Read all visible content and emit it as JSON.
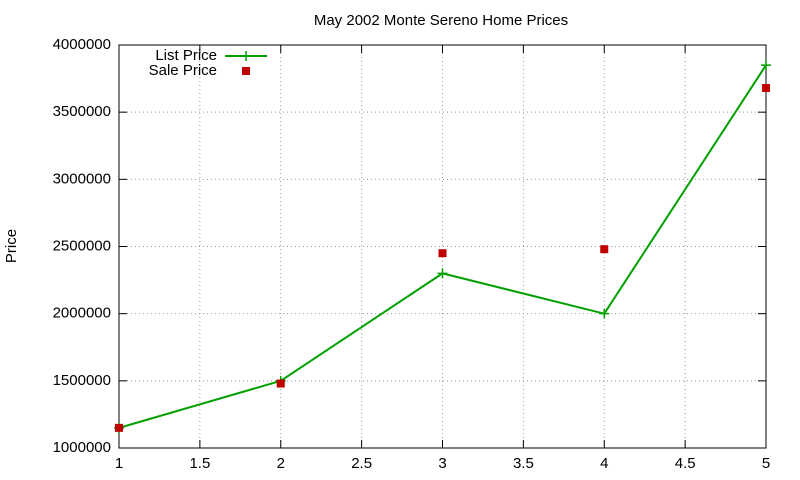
{
  "chart_data": {
    "type": "line",
    "title": "May 2002 Monte Sereno Home Prices",
    "y_label": "Price",
    "x": [
      1,
      2,
      3,
      4,
      5
    ],
    "series": [
      {
        "name": "List Price",
        "type": "line",
        "color": "#00a000",
        "values": [
          1150000,
          1500000,
          2300000,
          2000000,
          3850000
        ]
      },
      {
        "name": "Sale Price",
        "type": "scatter",
        "color": "#c00000",
        "values": [
          1150000,
          1480000,
          2450000,
          2480000,
          3680000
        ]
      }
    ],
    "xlim": [
      1,
      5
    ],
    "xticks": [
      1,
      1.5,
      2,
      2.5,
      3,
      3.5,
      4,
      4.5,
      5
    ],
    "ylim": [
      1000000,
      4000000
    ],
    "yticks": [
      1000000,
      1500000,
      2000000,
      2500000,
      3000000,
      3500000,
      4000000
    ],
    "grid": true,
    "legend": "top-left"
  }
}
